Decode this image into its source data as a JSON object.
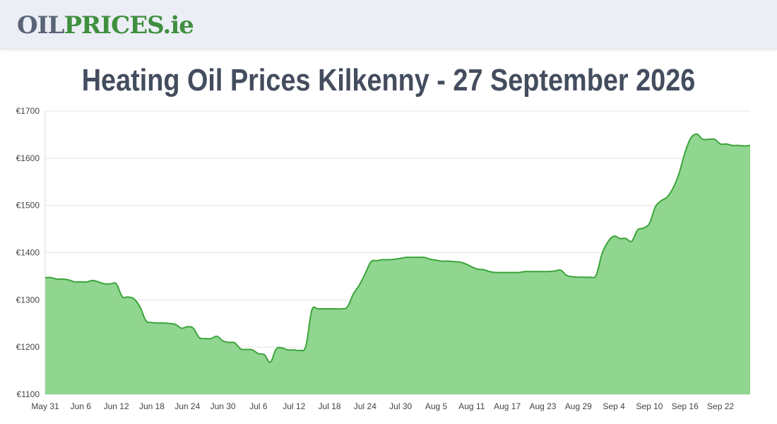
{
  "logo": {
    "part1": "OIL",
    "part2": "PRICES",
    "part3": ".ie"
  },
  "page_title": "Heating Oil Prices Kilkenny - 27 September 2026",
  "colors": {
    "area_fill": "#90d590",
    "line": "#3ba53b",
    "grid": "#e3e3e3",
    "logo_grey": "#5a6478",
    "logo_green": "#3f8f3f"
  },
  "chart_data": {
    "type": "area",
    "title": "",
    "xlabel": "",
    "ylabel": "",
    "x_tick_labels": [
      "May 31",
      "Jun 6",
      "Jun 12",
      "Jun 18",
      "Jun 24",
      "Jun 30",
      "Jul 6",
      "Jul 12",
      "Jul 18",
      "Jul 24",
      "Jul 30",
      "Aug 5",
      "Aug 11",
      "Aug 17",
      "Aug 23",
      "Aug 29",
      "Sep 4",
      "Sep 10",
      "Sep 16",
      "Sep 22"
    ],
    "y_tick_labels": [
      "€1100",
      "€1200",
      "€1300",
      "€1400",
      "€1500",
      "€1600",
      "€1700"
    ],
    "y_ticks": [
      1100,
      1200,
      1300,
      1400,
      1500,
      1600,
      1700
    ],
    "ylim": [
      1100,
      1700
    ],
    "x_start": "2026-05-31",
    "x_end": "2026-09-27",
    "grid": true,
    "legend": "none",
    "series": [
      {
        "points": [
          [
            "2026-05-31",
            1347
          ],
          [
            "2026-06-01",
            1347
          ],
          [
            "2026-06-02",
            1344
          ],
          [
            "2026-06-03",
            1344
          ],
          [
            "2026-06-04",
            1342
          ],
          [
            "2026-06-05",
            1338
          ],
          [
            "2026-06-06",
            1338
          ],
          [
            "2026-06-07",
            1338
          ],
          [
            "2026-06-08",
            1341
          ],
          [
            "2026-06-09",
            1338
          ],
          [
            "2026-06-10",
            1334
          ],
          [
            "2026-06-11",
            1334
          ],
          [
            "2026-06-12",
            1334
          ],
          [
            "2026-06-13",
            1307
          ],
          [
            "2026-06-14",
            1306
          ],
          [
            "2026-06-15",
            1302
          ],
          [
            "2026-06-16",
            1285
          ],
          [
            "2026-06-17",
            1256
          ],
          [
            "2026-06-18",
            1252
          ],
          [
            "2026-06-19",
            1251
          ],
          [
            "2026-06-20",
            1251
          ],
          [
            "2026-06-21",
            1250
          ],
          [
            "2026-06-22",
            1248
          ],
          [
            "2026-06-23",
            1240
          ],
          [
            "2026-06-24",
            1243
          ],
          [
            "2026-06-25",
            1240
          ],
          [
            "2026-06-26",
            1220
          ],
          [
            "2026-06-27",
            1218
          ],
          [
            "2026-06-28",
            1218
          ],
          [
            "2026-06-29",
            1223
          ],
          [
            "2026-06-30",
            1213
          ],
          [
            "2026-07-01",
            1210
          ],
          [
            "2026-07-02",
            1209
          ],
          [
            "2026-07-03",
            1196
          ],
          [
            "2026-07-04",
            1195
          ],
          [
            "2026-07-05",
            1194
          ],
          [
            "2026-07-06",
            1186
          ],
          [
            "2026-07-07",
            1184
          ],
          [
            "2026-07-08",
            1168
          ],
          [
            "2026-07-09",
            1196
          ],
          [
            "2026-07-10",
            1198
          ],
          [
            "2026-07-11",
            1194
          ],
          [
            "2026-07-12",
            1194
          ],
          [
            "2026-07-13",
            1193
          ],
          [
            "2026-07-14",
            1202
          ],
          [
            "2026-07-15",
            1278
          ],
          [
            "2026-07-16",
            1281
          ],
          [
            "2026-07-17",
            1281
          ],
          [
            "2026-07-18",
            1281
          ],
          [
            "2026-07-19",
            1281
          ],
          [
            "2026-07-20",
            1281
          ],
          [
            "2026-07-21",
            1285
          ],
          [
            "2026-07-22",
            1312
          ],
          [
            "2026-07-23",
            1331
          ],
          [
            "2026-07-24",
            1355
          ],
          [
            "2026-07-25",
            1381
          ],
          [
            "2026-07-26",
            1383
          ],
          [
            "2026-07-27",
            1385
          ],
          [
            "2026-07-28",
            1385
          ],
          [
            "2026-07-29",
            1386
          ],
          [
            "2026-07-30",
            1388
          ],
          [
            "2026-07-31",
            1390
          ],
          [
            "2026-08-01",
            1390
          ],
          [
            "2026-08-02",
            1390
          ],
          [
            "2026-08-03",
            1390
          ],
          [
            "2026-08-04",
            1386
          ],
          [
            "2026-08-05",
            1384
          ],
          [
            "2026-08-06",
            1382
          ],
          [
            "2026-08-07",
            1382
          ],
          [
            "2026-08-08",
            1381
          ],
          [
            "2026-08-09",
            1380
          ],
          [
            "2026-08-10",
            1376
          ],
          [
            "2026-08-11",
            1370
          ],
          [
            "2026-08-12",
            1365
          ],
          [
            "2026-08-13",
            1364
          ],
          [
            "2026-08-14",
            1360
          ],
          [
            "2026-08-15",
            1358
          ],
          [
            "2026-08-16",
            1358
          ],
          [
            "2026-08-17",
            1358
          ],
          [
            "2026-08-18",
            1358
          ],
          [
            "2026-08-19",
            1358
          ],
          [
            "2026-08-20",
            1360
          ],
          [
            "2026-08-21",
            1360
          ],
          [
            "2026-08-22",
            1360
          ],
          [
            "2026-08-23",
            1360
          ],
          [
            "2026-08-24",
            1360
          ],
          [
            "2026-08-25",
            1361
          ],
          [
            "2026-08-26",
            1363
          ],
          [
            "2026-08-27",
            1352
          ],
          [
            "2026-08-28",
            1349
          ],
          [
            "2026-08-29",
            1348
          ],
          [
            "2026-08-30",
            1348
          ],
          [
            "2026-08-31",
            1348
          ],
          [
            "2026-09-01",
            1352
          ],
          [
            "2026-09-02",
            1398
          ],
          [
            "2026-09-03",
            1423
          ],
          [
            "2026-09-04",
            1435
          ],
          [
            "2026-09-05",
            1430
          ],
          [
            "2026-09-06",
            1430
          ],
          [
            "2026-09-07",
            1424
          ],
          [
            "2026-09-08",
            1448
          ],
          [
            "2026-09-09",
            1452
          ],
          [
            "2026-09-10",
            1462
          ],
          [
            "2026-09-11",
            1497
          ],
          [
            "2026-09-12",
            1510
          ],
          [
            "2026-09-13",
            1518
          ],
          [
            "2026-09-14",
            1537
          ],
          [
            "2026-09-15",
            1568
          ],
          [
            "2026-09-16",
            1612
          ],
          [
            "2026-09-17",
            1643
          ],
          [
            "2026-09-18",
            1651
          ],
          [
            "2026-09-19",
            1640
          ],
          [
            "2026-09-20",
            1640
          ],
          [
            "2026-09-21",
            1640
          ],
          [
            "2026-09-22",
            1630
          ],
          [
            "2026-09-23",
            1630
          ],
          [
            "2026-09-24",
            1627
          ],
          [
            "2026-09-25",
            1627
          ],
          [
            "2026-09-26",
            1626
          ],
          [
            "2026-09-27",
            1627
          ]
        ]
      }
    ]
  }
}
